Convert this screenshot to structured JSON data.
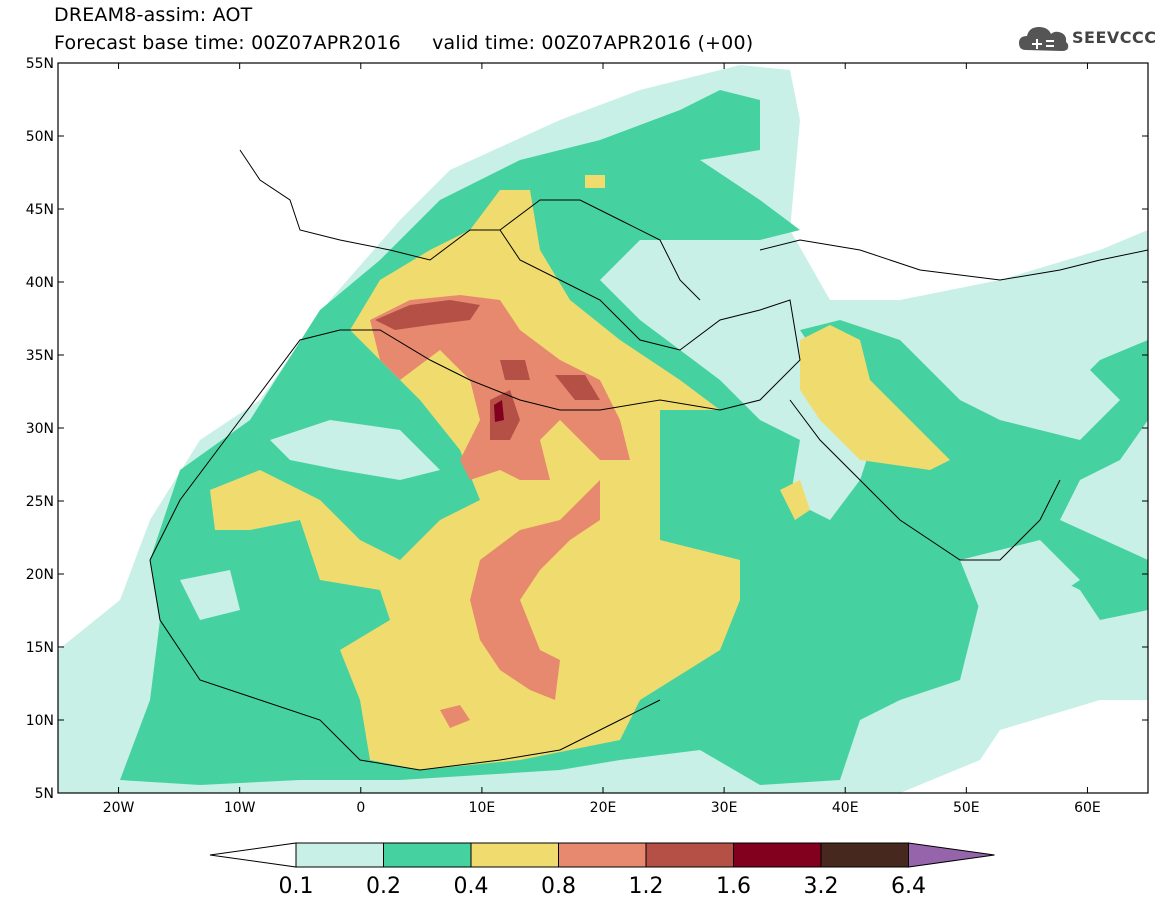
{
  "title": {
    "line1": "DREAM8-assim: AOT",
    "line2": "Forecast base time: 00Z07APR2016     valid time: 00Z07APR2016 (+00)"
  },
  "logo": {
    "text": "SEEVCCC",
    "icon": "cloud-logo-icon"
  },
  "map": {
    "lat_labels": [
      "55N",
      "50N",
      "45N",
      "40N",
      "35N",
      "30N",
      "25N",
      "20N",
      "15N",
      "10N",
      "5N"
    ],
    "lon_labels": [
      "20W",
      "10W",
      "0",
      "10E",
      "20E",
      "30E",
      "40E",
      "50E",
      "60E"
    ]
  },
  "colorbar": {
    "ticks": [
      "0.1",
      "0.2",
      "0.4",
      "0.8",
      "1.2",
      "1.6",
      "3.2",
      "6.4"
    ],
    "colors": [
      "#ffffff",
      "#c8f0e6",
      "#46d2a0",
      "#f0dc6e",
      "#e6896e",
      "#b45046",
      "#82001e",
      "#46281e",
      "#9664aa"
    ]
  }
}
